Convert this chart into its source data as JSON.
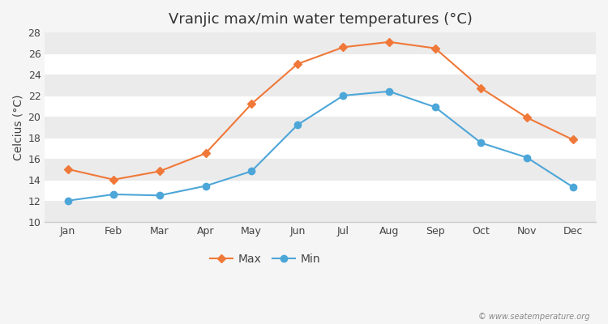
{
  "title": "Vranjic max/min water temperatures (°C)",
  "ylabel": "Celcius (°C)",
  "months": [
    "Jan",
    "Feb",
    "Mar",
    "Apr",
    "May",
    "Jun",
    "Jul",
    "Aug",
    "Sep",
    "Oct",
    "Nov",
    "Dec"
  ],
  "max_values": [
    15.0,
    14.0,
    14.8,
    16.5,
    21.2,
    25.0,
    26.6,
    27.1,
    26.5,
    22.7,
    19.9,
    17.8
  ],
  "min_values": [
    12.0,
    12.6,
    12.5,
    13.4,
    14.8,
    19.2,
    22.0,
    22.4,
    20.9,
    17.5,
    16.1,
    13.3
  ],
  "max_color": "#f07838",
  "min_color": "#4da6d8",
  "ylim": [
    10,
    28
  ],
  "yticks": [
    10,
    12,
    14,
    16,
    18,
    20,
    22,
    24,
    26,
    28
  ],
  "fig_bg_color": "#f5f5f5",
  "plot_bg_color": "#ffffff",
  "stripe_color": "#ebebeb",
  "spine_color": "#cccccc",
  "watermark": "© www.seatemperature.org",
  "legend_labels": [
    "Max",
    "Min"
  ],
  "title_fontsize": 13,
  "axis_label_fontsize": 10,
  "tick_fontsize": 9,
  "max_marker": "D",
  "min_marker": "o",
  "max_marker_size": 5,
  "min_marker_size": 6,
  "line_width": 1.5
}
